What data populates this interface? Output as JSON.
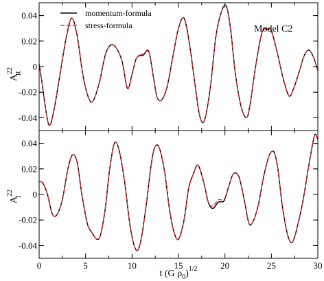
{
  "chart_data": {
    "type": "line",
    "figure": {
      "xlabel": {
        "main": "t (G ρ",
        "sub": "0",
        "close": ")",
        "sup": "1/2"
      },
      "annotation": "Model C2",
      "legend": [
        {
          "label": "momentum-formula",
          "color": "#000000",
          "style": "solid"
        },
        {
          "label": "stress-formula",
          "color": "#e03030",
          "style": "dashed"
        }
      ],
      "legend_position": "top-left",
      "xlim": [
        0,
        30
      ],
      "xticks": [
        0,
        5,
        10,
        15,
        20,
        25,
        30
      ],
      "xtick_labels": [
        "0",
        "5",
        "10",
        "15",
        "20",
        "25",
        "30"
      ]
    },
    "panels": [
      {
        "id": "top",
        "ylabel": {
          "main": "A",
          "sup": "22",
          "sub": "R"
        },
        "ylim": [
          -0.05,
          0.05
        ],
        "yticks": [
          -0.04,
          -0.02,
          0,
          0.02,
          0.04
        ],
        "ytick_labels": [
          "-0.04",
          "-0.02",
          "0",
          "0.02",
          "0.04"
        ],
        "series": [
          {
            "name": "momentum-formula",
            "color": "#000000",
            "style": "solid",
            "x": [
              0,
              0.3,
              0.7,
              1.1,
              1.6,
              2.2,
              2.9,
              3.5,
              4.1,
              4.7,
              5.3,
              5.8,
              6.5,
              7.2,
              8.0,
              8.9,
              9.5,
              10.0,
              10.5,
              11.2,
              11.8,
              12.3,
              12.7,
              13.2,
              13.8,
              14.4,
              15.0,
              15.6,
              16.2,
              16.8,
              17.3,
              17.8,
              18.4,
              19.0,
              19.5,
              20.1,
              20.6,
              21.1,
              21.7,
              22.3,
              22.7,
              23.3,
              24.0,
              24.6,
              25.0,
              25.6,
              26.3,
              26.9,
              27.4,
              28.0,
              28.5,
              29.0,
              29.5,
              30.0
            ],
            "y": [
              0.002,
              -0.012,
              -0.033,
              -0.046,
              -0.034,
              -0.008,
              0.022,
              0.038,
              0.024,
              -0.006,
              -0.024,
              -0.027,
              -0.012,
              0.011,
              0.017,
              0.005,
              -0.017,
              -0.006,
              0.007,
              0.009,
              0.012,
              -0.008,
              -0.024,
              -0.026,
              -0.015,
              0.008,
              0.03,
              0.038,
              0.017,
              -0.015,
              -0.039,
              -0.042,
              -0.018,
              0.022,
              0.04,
              0.048,
              0.03,
              -0.004,
              -0.03,
              -0.04,
              -0.03,
              0.0,
              0.027,
              0.029,
              0.028,
              0.012,
              -0.01,
              -0.023,
              -0.017,
              -0.004,
              0.008,
              0.013,
              0.008,
              -0.003
            ]
          },
          {
            "name": "stress-formula",
            "color": "#e03030",
            "style": "dashed",
            "x": [
              0,
              0.3,
              0.7,
              1.1,
              1.6,
              2.2,
              2.9,
              3.5,
              4.1,
              4.7,
              5.3,
              5.8,
              6.5,
              7.2,
              8.0,
              8.9,
              9.5,
              10.0,
              10.5,
              11.2,
              11.8,
              12.3,
              12.7,
              13.2,
              13.8,
              14.4,
              15.0,
              15.6,
              16.2,
              16.8,
              17.3,
              17.8,
              18.4,
              19.0,
              19.5,
              20.1,
              20.6,
              21.1,
              21.7,
              22.3,
              22.7,
              23.3,
              24.0,
              24.6,
              25.0,
              25.6,
              26.3,
              26.9,
              27.4,
              28.0,
              28.5,
              29.0,
              29.5,
              30.0
            ],
            "y": [
              0.002,
              -0.012,
              -0.033,
              -0.046,
              -0.034,
              -0.008,
              0.022,
              0.038,
              0.024,
              -0.006,
              -0.024,
              -0.027,
              -0.012,
              0.011,
              0.017,
              0.005,
              -0.017,
              -0.006,
              0.007,
              0.01,
              0.012,
              -0.008,
              -0.024,
              -0.026,
              -0.015,
              0.008,
              0.03,
              0.038,
              0.017,
              -0.015,
              -0.039,
              -0.042,
              -0.018,
              0.022,
              0.04,
              0.048,
              0.03,
              -0.004,
              -0.03,
              -0.04,
              -0.03,
              0.0,
              0.027,
              0.03,
              0.028,
              0.012,
              -0.01,
              -0.023,
              -0.017,
              -0.004,
              0.008,
              0.013,
              0.008,
              -0.003
            ]
          }
        ]
      },
      {
        "id": "bottom",
        "ylabel": {
          "main": "A",
          "sup": "22",
          "sub": "I"
        },
        "ylim": [
          -0.05,
          0.05
        ],
        "yticks": [
          -0.04,
          -0.02,
          0,
          0.02,
          0.04
        ],
        "ytick_labels": [
          "-0.04",
          "-0.02",
          "0",
          "0.02",
          "0.04"
        ],
        "series": [
          {
            "name": "momentum-formula",
            "color": "#000000",
            "style": "solid",
            "x": [
              0,
              0.4,
              0.9,
              1.4,
              1.9,
              2.5,
              3.1,
              3.6,
              4.1,
              4.6,
              5.2,
              5.7,
              6.2,
              6.6,
              7.1,
              7.6,
              8.1,
              8.6,
              9.2,
              9.8,
              10.4,
              10.9,
              11.5,
              12.0,
              12.4,
              12.9,
              13.5,
              14.0,
              14.5,
              15.0,
              15.6,
              16.1,
              16.6,
              17.1,
              17.7,
              18.2,
              18.7,
              19.3,
              19.9,
              20.4,
              20.9,
              21.5,
              22.1,
              22.6,
              23.1,
              23.6,
              24.2,
              24.8,
              25.3,
              25.7,
              26.2,
              26.8,
              27.3,
              27.8,
              28.4,
              28.9,
              29.4,
              29.7,
              30.0
            ],
            "y": [
              0.01,
              0.009,
              0.0,
              -0.015,
              -0.016,
              -0.004,
              0.02,
              0.031,
              0.025,
              0.0,
              -0.023,
              -0.03,
              -0.035,
              -0.032,
              -0.012,
              0.02,
              0.04,
              0.035,
              0.01,
              -0.025,
              -0.043,
              -0.038,
              -0.01,
              0.02,
              0.036,
              0.037,
              0.018,
              -0.01,
              -0.029,
              -0.035,
              -0.02,
              0.005,
              0.016,
              0.023,
              0.01,
              -0.006,
              -0.011,
              -0.006,
              -0.005,
              0.006,
              0.016,
              0.014,
              -0.005,
              -0.023,
              -0.02,
              -0.008,
              0.015,
              0.031,
              0.033,
              0.02,
              -0.01,
              -0.033,
              -0.037,
              -0.025,
              -0.005,
              0.017,
              0.038,
              0.047,
              0.043
            ]
          },
          {
            "name": "stress-formula",
            "color": "#e03030",
            "style": "dashed",
            "x": [
              0,
              0.4,
              0.9,
              1.4,
              1.9,
              2.5,
              3.1,
              3.6,
              4.1,
              4.6,
              5.2,
              5.7,
              6.2,
              6.6,
              7.1,
              7.6,
              8.1,
              8.6,
              9.2,
              9.8,
              10.4,
              10.9,
              11.5,
              12.0,
              12.4,
              12.9,
              13.5,
              14.0,
              14.5,
              15.0,
              15.6,
              16.1,
              16.6,
              17.1,
              17.7,
              18.2,
              18.7,
              19.3,
              19.9,
              20.4,
              20.9,
              21.5,
              22.1,
              22.6,
              23.1,
              23.6,
              24.2,
              24.8,
              25.3,
              25.7,
              26.2,
              26.8,
              27.3,
              27.8,
              28.4,
              28.9,
              29.4,
              29.7,
              30.0
            ],
            "y": [
              0.01,
              0.009,
              0.0,
              -0.015,
              -0.016,
              -0.004,
              0.02,
              0.031,
              0.025,
              0.0,
              -0.023,
              -0.03,
              -0.035,
              -0.032,
              -0.012,
              0.02,
              0.04,
              0.035,
              0.01,
              -0.025,
              -0.043,
              -0.038,
              -0.01,
              0.02,
              0.036,
              0.037,
              0.018,
              -0.01,
              -0.029,
              -0.035,
              -0.02,
              0.005,
              0.016,
              0.023,
              0.01,
              -0.006,
              -0.009,
              -0.004,
              -0.004,
              0.006,
              0.016,
              0.014,
              -0.005,
              -0.023,
              -0.02,
              -0.008,
              0.015,
              0.031,
              0.033,
              0.02,
              -0.01,
              -0.033,
              -0.037,
              -0.025,
              -0.005,
              0.017,
              0.038,
              0.047,
              0.043
            ]
          }
        ]
      }
    ]
  }
}
